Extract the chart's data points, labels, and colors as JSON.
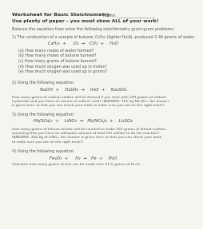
{
  "title_line1": "Worksheet for Basic Stoichiometry",
  "name_label": "Name: ___________________",
  "title_line2": "Use plenty of paper – you must show ALL of your work!",
  "balance_instruction": "Balance the equation then solve the following stoichiometry gram-gram problems.",
  "section1_header": "1) The combustion of a sample of butane, C₄H₁₀ (lighter fluid), produced 2.46 grams of water.",
  "section1_equation": "C₄H₁₀  +     O₂  →   CO₂  +    H₂O",
  "section1_questions": [
    "(a) How many moles of water formed?",
    "(b) How many moles of butane burned?",
    "(c) How many grams of butane burned?",
    "(d) How much oxygen was used up in moles?",
    "(e) How much oxygen was used up in grams?"
  ],
  "section2_header": "2) Using the following equation:",
  "section2_equation": "NaOH  +    H₂SO₄  →    H₂O  +    Na₂SO₄",
  "section2_question": "How many grams of sodium sulfate will be formed if you start with 200 grams of sodium\nhydroxide and you have an excess of sulfuric acid? (ANSWER: 355.2g Na₂SO₄; the answer\nis given here so that you can check your work to make sure you are on the right track!)",
  "section3_header": "3) Using the following equation:",
  "section3_equation": "Pb(SO₄)₂  +    LiNO₃  →   Pb(NO₃)₄  +    Li₂SO₄",
  "section3_question": "How many grams of lithium nitrate will be needed to make 250 grams of lithium sulfate,\nassuming that you have an adequate amount of lead (IV) sulfate to do the reaction?\n(ANSWER: 344.4g of LiNO₃; the answer is given here so that you can check your work\nto make sure you are on the right track!)",
  "section4_header": "4) Using the following equation:",
  "section4_equation": "Fe₂O₃  +     H₂  →   Fe  +    H₂O",
  "section4_question": "Calculate how many grams of iron can be made from 16.5 grams of Fe₂O₃.",
  "bg_color": "#f5f5f0",
  "text_color": "#555555",
  "eq_color": "#444444",
  "bold_color": "#333333"
}
